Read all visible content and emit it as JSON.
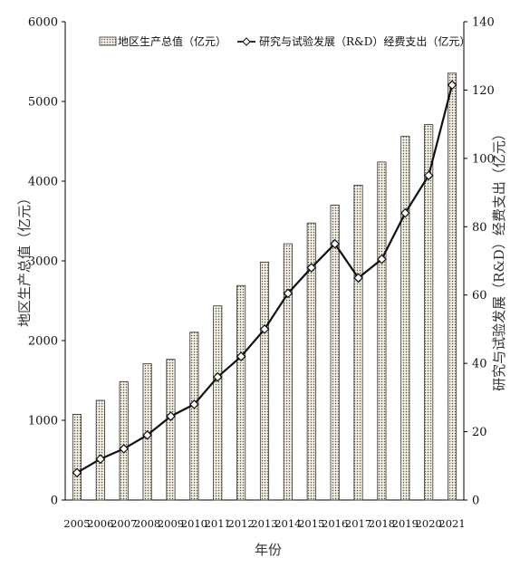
{
  "chart_data": {
    "type": "bar",
    "categories": [
      "2005",
      "2006",
      "2007",
      "2008",
      "2009",
      "2010",
      "2011",
      "2012",
      "2013",
      "2014",
      "2015",
      "2016",
      "2017",
      "2018",
      "2019",
      "2020",
      "2021"
    ],
    "series": [
      {
        "name": "地区生产总值（亿元）",
        "type": "bar",
        "axis": "left",
        "values": [
          1075,
          1250,
          1485,
          1710,
          1765,
          2105,
          2435,
          2690,
          2985,
          3215,
          3475,
          3700,
          3950,
          4240,
          4565,
          4710,
          5355
        ]
      },
      {
        "name": "研究与试验发展（R&D）经费支出（亿元）",
        "type": "line",
        "axis": "right",
        "values": [
          8,
          12,
          15,
          19,
          24.5,
          28,
          36,
          42,
          50,
          60.5,
          68,
          75,
          65,
          70.5,
          84,
          95,
          121.5
        ]
      }
    ],
    "xlabel": "年份",
    "ylabel_left": "地区生产总值（亿元）",
    "ylabel_right": "研究与试验发展（R&D）经费支出（亿元）",
    "ylim_left": [
      0,
      6000
    ],
    "ylim_right": [
      0,
      140
    ],
    "yticks_left": [
      "0",
      "1000",
      "2000",
      "3000",
      "4000",
      "5000",
      "6000"
    ],
    "yticks_right": [
      "0",
      "20",
      "40",
      "60",
      "80",
      "100",
      "120",
      "140"
    ],
    "grid": false,
    "legend_position": "top",
    "colors": {
      "bar_fill": "#f3efe3",
      "bar_dots": "#5a5245",
      "line": "#111111",
      "marker_fill": "#ffffff"
    }
  }
}
